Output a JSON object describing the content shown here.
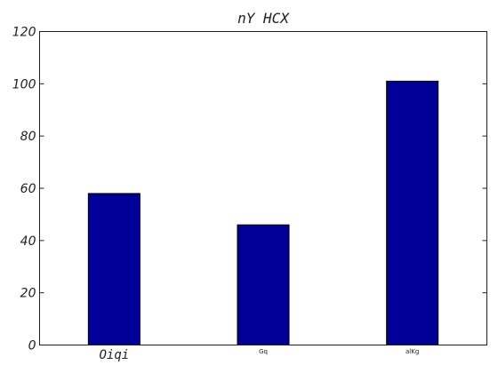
{
  "chart_data": {
    "type": "bar",
    "title": "nY HCX",
    "xlabel": "",
    "ylabel": "",
    "categories": [
      "Oiqi",
      "Gq",
      "alKg"
    ],
    "values": [
      58,
      46,
      101
    ],
    "ylim": [
      0,
      120
    ],
    "yticks": [
      0,
      20,
      40,
      60,
      80,
      100,
      120
    ],
    "grid": false,
    "bar_color": "#000099"
  }
}
